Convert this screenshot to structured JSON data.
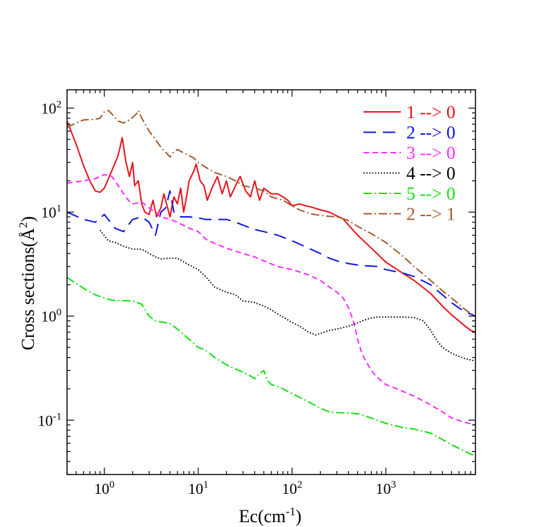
{
  "chart_data": {
    "type": "line",
    "title": "",
    "xlabel": {
      "base": "Ec(cm",
      "sup": "-1",
      "close": ")"
    },
    "ylabel": {
      "base": "Cross sections(",
      "unit": "Å",
      "sup": "2",
      "close": ")"
    },
    "xscale": "log",
    "yscale": "log",
    "xlim": [
      0.4,
      9000
    ],
    "ylim": [
      0.03,
      150
    ],
    "grid": false,
    "legend_position": "top-right",
    "x_ticks": [
      {
        "value": 1,
        "base": "10",
        "exp": "0"
      },
      {
        "value": 10,
        "base": "10",
        "exp": "1"
      },
      {
        "value": 100,
        "base": "10",
        "exp": "2"
      },
      {
        "value": 1000,
        "base": "10",
        "exp": "3"
      }
    ],
    "y_ticks": [
      {
        "value": 0.1,
        "base": "10",
        "exp": "-1"
      },
      {
        "value": 1,
        "base": "10",
        "exp": "0"
      },
      {
        "value": 10,
        "base": "10",
        "exp": "1"
      },
      {
        "value": 100,
        "base": "10",
        "exp": "2"
      }
    ],
    "series": [
      {
        "name": "1 --> 0",
        "color": "#e8101a",
        "dash": "solid",
        "points": [
          [
            0.4,
            75
          ],
          [
            0.5,
            45
          ],
          [
            0.6,
            28
          ],
          [
            0.7,
            20
          ],
          [
            0.8,
            16
          ],
          [
            0.9,
            15.5
          ],
          [
            1.0,
            17
          ],
          [
            1.2,
            25
          ],
          [
            1.4,
            35
          ],
          [
            1.55,
            52
          ],
          [
            1.7,
            30
          ],
          [
            1.85,
            22
          ],
          [
            2.0,
            30
          ],
          [
            2.1,
            18
          ],
          [
            2.3,
            20
          ],
          [
            2.5,
            12
          ],
          [
            2.7,
            10
          ],
          [
            3.0,
            9.5
          ],
          [
            3.3,
            13
          ],
          [
            3.6,
            9
          ],
          [
            4.0,
            11
          ],
          [
            4.3,
            15
          ],
          [
            4.6,
            12
          ],
          [
            5.0,
            9
          ],
          [
            5.5,
            14
          ],
          [
            6.0,
            12
          ],
          [
            6.5,
            17
          ],
          [
            7.0,
            10
          ],
          [
            7.5,
            14
          ],
          [
            8.0,
            20
          ],
          [
            9.0,
            25
          ],
          [
            9.5,
            29
          ],
          [
            10.5,
            20
          ],
          [
            11.5,
            18
          ],
          [
            12.5,
            13
          ],
          [
            14,
            17
          ],
          [
            16,
            22
          ],
          [
            18,
            15
          ],
          [
            20,
            20
          ],
          [
            22,
            14
          ],
          [
            25,
            18
          ],
          [
            28,
            22
          ],
          [
            32,
            16
          ],
          [
            36,
            14
          ],
          [
            40,
            20
          ],
          [
            45,
            13
          ],
          [
            50,
            17
          ],
          [
            60,
            15
          ],
          [
            70,
            15
          ],
          [
            80,
            14
          ],
          [
            90,
            13
          ],
          [
            100,
            11.5
          ],
          [
            120,
            12
          ],
          [
            140,
            11.5
          ],
          [
            160,
            11.2
          ],
          [
            200,
            10.5
          ],
          [
            250,
            10
          ],
          [
            300,
            9.2
          ],
          [
            350,
            8.6
          ],
          [
            400,
            7.5
          ],
          [
            500,
            6
          ],
          [
            700,
            4.5
          ],
          [
            1000,
            3.3
          ],
          [
            1500,
            2.6
          ],
          [
            2000,
            2.2
          ],
          [
            3000,
            1.65
          ],
          [
            4000,
            1.25
          ],
          [
            5000,
            1.03
          ],
          [
            6000,
            0.9
          ],
          [
            7000,
            0.8
          ],
          [
            8000,
            0.73
          ],
          [
            9000,
            0.7
          ]
        ]
      },
      {
        "name": "2 --> 0",
        "color": "#0a14e0",
        "dash": "long-dash",
        "points": [
          [
            0.4,
            10
          ],
          [
            0.6,
            8.5
          ],
          [
            0.8,
            8
          ],
          [
            1.0,
            9.5
          ],
          [
            1.3,
            7
          ],
          [
            1.6,
            6.5
          ],
          [
            2.0,
            8.5
          ],
          [
            2.5,
            9
          ],
          [
            3.0,
            8
          ],
          [
            3.5,
            6
          ],
          [
            4.0,
            10
          ],
          [
            4.5,
            11
          ],
          [
            5.0,
            16
          ],
          [
            5.5,
            10
          ],
          [
            6.5,
            9
          ],
          [
            8,
            9
          ],
          [
            10,
            8.8
          ],
          [
            12,
            8.5
          ],
          [
            15,
            8.5
          ],
          [
            20,
            8.5
          ],
          [
            25,
            8
          ],
          [
            30,
            7.5
          ],
          [
            40,
            6.8
          ],
          [
            50,
            6.5
          ],
          [
            70,
            6
          ],
          [
            100,
            5.3
          ],
          [
            150,
            4.5
          ],
          [
            200,
            4
          ],
          [
            250,
            3.6
          ],
          [
            300,
            3.4
          ],
          [
            400,
            3.2
          ],
          [
            500,
            3.1
          ],
          [
            600,
            3.05
          ],
          [
            800,
            3
          ],
          [
            1000,
            2.8
          ],
          [
            1500,
            2.6
          ],
          [
            2000,
            2.4
          ],
          [
            3000,
            2
          ],
          [
            4000,
            1.6
          ],
          [
            5000,
            1.35
          ],
          [
            6000,
            1.2
          ],
          [
            7000,
            1.1
          ],
          [
            9000,
            1.0
          ]
        ]
      },
      {
        "name": "3 --> 0",
        "color": "#ff28ff",
        "dash": "short-dash",
        "points": [
          [
            0.4,
            19
          ],
          [
            0.6,
            20
          ],
          [
            0.8,
            21
          ],
          [
            1.0,
            23
          ],
          [
            1.2,
            22
          ],
          [
            1.4,
            18
          ],
          [
            1.6,
            15
          ],
          [
            1.8,
            13
          ],
          [
            2.0,
            12
          ],
          [
            2.5,
            12.5
          ],
          [
            3.0,
            11
          ],
          [
            3.5,
            10
          ],
          [
            4.0,
            9
          ],
          [
            5,
            8.5
          ],
          [
            6,
            8
          ],
          [
            8,
            7
          ],
          [
            10,
            6.5
          ],
          [
            12,
            5.5
          ],
          [
            15,
            5
          ],
          [
            20,
            4.5
          ],
          [
            25,
            4.2
          ],
          [
            30,
            4
          ],
          [
            40,
            3.7
          ],
          [
            50,
            3.4
          ],
          [
            70,
            3
          ],
          [
            100,
            2.8
          ],
          [
            150,
            2.5
          ],
          [
            200,
            2.2
          ],
          [
            250,
            1.9
          ],
          [
            300,
            1.7
          ],
          [
            350,
            1.5
          ],
          [
            400,
            1.2
          ],
          [
            450,
            0.9
          ],
          [
            500,
            0.6
          ],
          [
            550,
            0.45
          ],
          [
            600,
            0.38
          ],
          [
            700,
            0.3
          ],
          [
            800,
            0.26
          ],
          [
            1000,
            0.22
          ],
          [
            1500,
            0.19
          ],
          [
            2000,
            0.17
          ],
          [
            3000,
            0.14
          ],
          [
            4000,
            0.12
          ],
          [
            5000,
            0.105
          ],
          [
            7000,
            0.095
          ],
          [
            9000,
            0.09
          ]
        ]
      },
      {
        "name": "4 --> 0",
        "color": "#000000",
        "dash": "dotted",
        "points": [
          [
            0.9,
            6.7
          ],
          [
            1.1,
            5.3
          ],
          [
            1.3,
            5.1
          ],
          [
            1.6,
            4.7
          ],
          [
            2.0,
            4.4
          ],
          [
            2.5,
            4.4
          ],
          [
            3.0,
            4
          ],
          [
            3.5,
            3.7
          ],
          [
            4.0,
            3.55
          ],
          [
            5,
            3.6
          ],
          [
            6,
            3.6
          ],
          [
            8,
            3.1
          ],
          [
            10,
            2.8
          ],
          [
            12,
            2.4
          ],
          [
            15,
            1.9
          ],
          [
            20,
            1.7
          ],
          [
            25,
            1.6
          ],
          [
            30,
            1.4
          ],
          [
            40,
            1.35
          ],
          [
            50,
            1.25
          ],
          [
            60,
            1.15
          ],
          [
            70,
            1.05
          ],
          [
            80,
            0.98
          ],
          [
            90,
            0.92
          ],
          [
            100,
            0.87
          ],
          [
            120,
            0.8
          ],
          [
            150,
            0.7
          ],
          [
            180,
            0.66
          ],
          [
            200,
            0.68
          ],
          [
            250,
            0.73
          ],
          [
            300,
            0.75
          ],
          [
            400,
            0.8
          ],
          [
            500,
            0.86
          ],
          [
            600,
            0.92
          ],
          [
            700,
            0.96
          ],
          [
            800,
            0.98
          ],
          [
            1000,
            0.98
          ],
          [
            1500,
            0.98
          ],
          [
            2000,
            0.97
          ],
          [
            2500,
            0.9
          ],
          [
            3000,
            0.73
          ],
          [
            3500,
            0.58
          ],
          [
            4000,
            0.5
          ],
          [
            5000,
            0.44
          ],
          [
            6000,
            0.41
          ],
          [
            7000,
            0.39
          ],
          [
            8000,
            0.38
          ],
          [
            9000,
            0.37
          ]
        ]
      },
      {
        "name": "5 --> 0",
        "color": "#10e010",
        "dash": "dash-dot",
        "points": [
          [
            0.4,
            2.35
          ],
          [
            0.6,
            1.85
          ],
          [
            0.8,
            1.6
          ],
          [
            1.0,
            1.5
          ],
          [
            1.2,
            1.42
          ],
          [
            1.5,
            1.41
          ],
          [
            2.0,
            1.4
          ],
          [
            2.5,
            1.3
          ],
          [
            3.0,
            1.0
          ],
          [
            3.5,
            0.9
          ],
          [
            4.0,
            0.88
          ],
          [
            5,
            0.85
          ],
          [
            6,
            0.75
          ],
          [
            8,
            0.6
          ],
          [
            10,
            0.5
          ],
          [
            12,
            0.47
          ],
          [
            15,
            0.4
          ],
          [
            20,
            0.34
          ],
          [
            25,
            0.31
          ],
          [
            30,
            0.29
          ],
          [
            35,
            0.27
          ],
          [
            40,
            0.25
          ],
          [
            45,
            0.28
          ],
          [
            50,
            0.3
          ],
          [
            55,
            0.24
          ],
          [
            60,
            0.22
          ],
          [
            70,
            0.21
          ],
          [
            80,
            0.2
          ],
          [
            100,
            0.18
          ],
          [
            130,
            0.16
          ],
          [
            150,
            0.15
          ],
          [
            200,
            0.13
          ],
          [
            250,
            0.12
          ],
          [
            300,
            0.118
          ],
          [
            400,
            0.117
          ],
          [
            500,
            0.115
          ],
          [
            600,
            0.11
          ],
          [
            800,
            0.1
          ],
          [
            1000,
            0.093
          ],
          [
            1500,
            0.085
          ],
          [
            2000,
            0.082
          ],
          [
            3000,
            0.075
          ],
          [
            4000,
            0.065
          ],
          [
            5000,
            0.058
          ],
          [
            7000,
            0.05
          ],
          [
            9000,
            0.045
          ]
        ]
      },
      {
        "name": "2 --> 1",
        "color": "#a05a2c",
        "dash": "dash-dot",
        "points": [
          [
            0.4,
            65
          ],
          [
            0.5,
            72
          ],
          [
            0.6,
            77
          ],
          [
            0.8,
            78
          ],
          [
            0.9,
            80
          ],
          [
            1.0,
            92
          ],
          [
            1.1,
            95
          ],
          [
            1.2,
            88
          ],
          [
            1.4,
            75
          ],
          [
            1.6,
            72
          ],
          [
            1.9,
            78
          ],
          [
            2.2,
            88
          ],
          [
            2.3,
            95
          ],
          [
            2.5,
            80
          ],
          [
            3.0,
            60
          ],
          [
            3.5,
            50
          ],
          [
            4.0,
            42
          ],
          [
            5.0,
            34
          ],
          [
            5.5,
            38
          ],
          [
            6,
            40
          ],
          [
            7,
            37
          ],
          [
            8,
            35
          ],
          [
            9,
            33
          ],
          [
            10,
            30
          ],
          [
            12,
            27
          ],
          [
            15,
            24
          ],
          [
            20,
            22
          ],
          [
            25,
            20
          ],
          [
            30,
            18
          ],
          [
            40,
            17
          ],
          [
            50,
            16
          ],
          [
            60,
            14
          ],
          [
            80,
            13
          ],
          [
            100,
            11.5
          ],
          [
            120,
            10.5
          ],
          [
            140,
            10
          ],
          [
            160,
            9.6
          ],
          [
            200,
            9.3
          ],
          [
            250,
            9.1
          ],
          [
            300,
            9
          ],
          [
            400,
            8.3
          ],
          [
            500,
            7.3
          ],
          [
            700,
            6.2
          ],
          [
            1000,
            5.1
          ],
          [
            1500,
            3.8
          ],
          [
            2000,
            3
          ],
          [
            3000,
            2.2
          ],
          [
            4000,
            1.75
          ],
          [
            5000,
            1.5
          ],
          [
            6000,
            1.3
          ],
          [
            7000,
            1.15
          ],
          [
            9000,
            1.0
          ]
        ]
      }
    ]
  }
}
